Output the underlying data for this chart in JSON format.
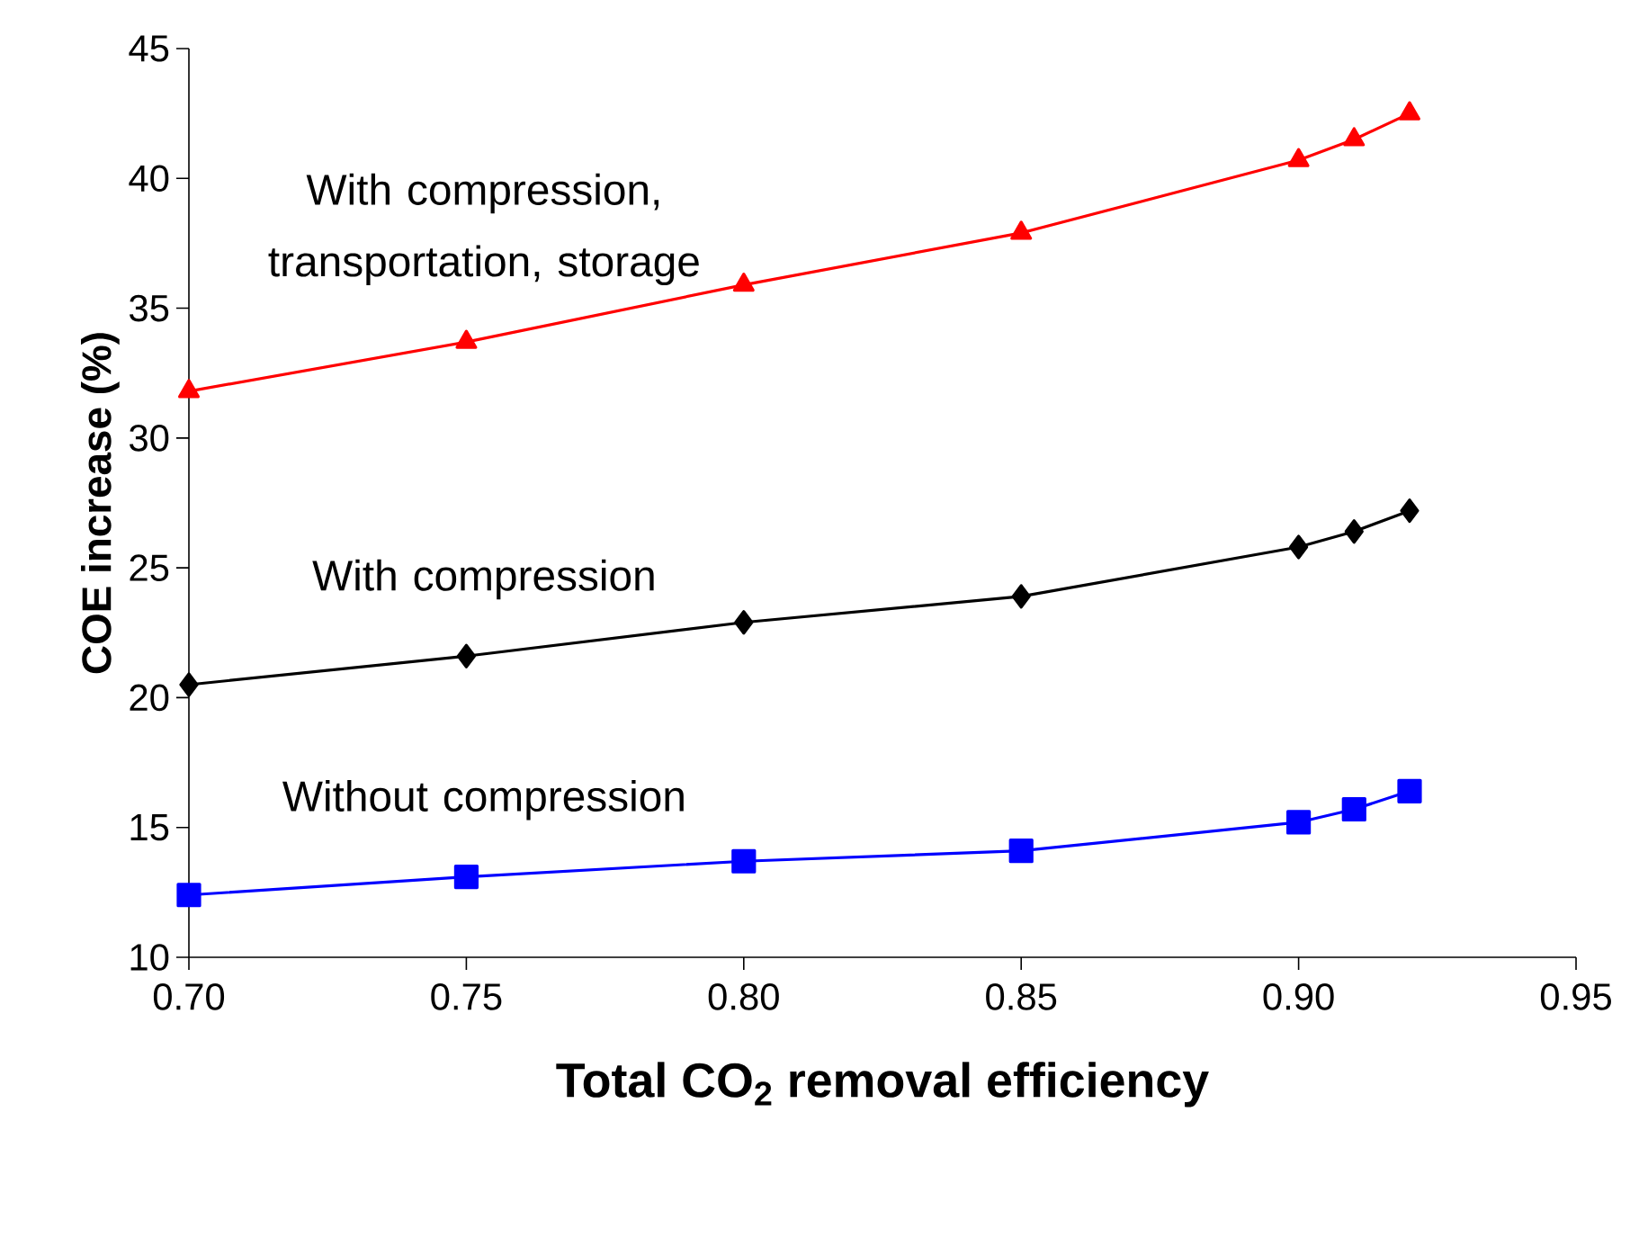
{
  "chart_data": {
    "type": "line",
    "xlabel": "Total CO$_{2}$ removal efficiency",
    "ylabel": "COE increase (%)",
    "xlim": [
      0.7,
      0.95
    ],
    "ylim": [
      10,
      45
    ],
    "xticks": [
      {
        "value": 0.7,
        "label": "0.70"
      },
      {
        "value": 0.75,
        "label": "0.75"
      },
      {
        "value": 0.8,
        "label": "0.80"
      },
      {
        "value": 0.85,
        "label": "0.85"
      },
      {
        "value": 0.9,
        "label": "0.90"
      },
      {
        "value": 0.95,
        "label": "0.95"
      }
    ],
    "yticks": [
      10,
      15,
      20,
      25,
      30,
      35,
      40,
      45
    ],
    "x": [
      0.7,
      0.75,
      0.8,
      0.85,
      0.9,
      0.91,
      0.92
    ],
    "grid": false,
    "legend": false,
    "line_style": "solid",
    "series": [
      {
        "name": "With compression, transportation, storage",
        "color": "#ff0000",
        "marker": "triangle",
        "values": [
          31.8,
          33.7,
          35.9,
          37.9,
          40.7,
          41.5,
          42.5
        ]
      },
      {
        "name": "With compression",
        "color": "#000000",
        "marker": "diamond",
        "values": [
          20.5,
          21.6,
          22.9,
          23.9,
          25.8,
          26.4,
          27.2
        ]
      },
      {
        "name": "Without compression",
        "color": "#0000ff",
        "marker": "square",
        "values": [
          12.4,
          13.1,
          13.7,
          14.1,
          15.2,
          15.7,
          16.4
        ]
      }
    ]
  }
}
